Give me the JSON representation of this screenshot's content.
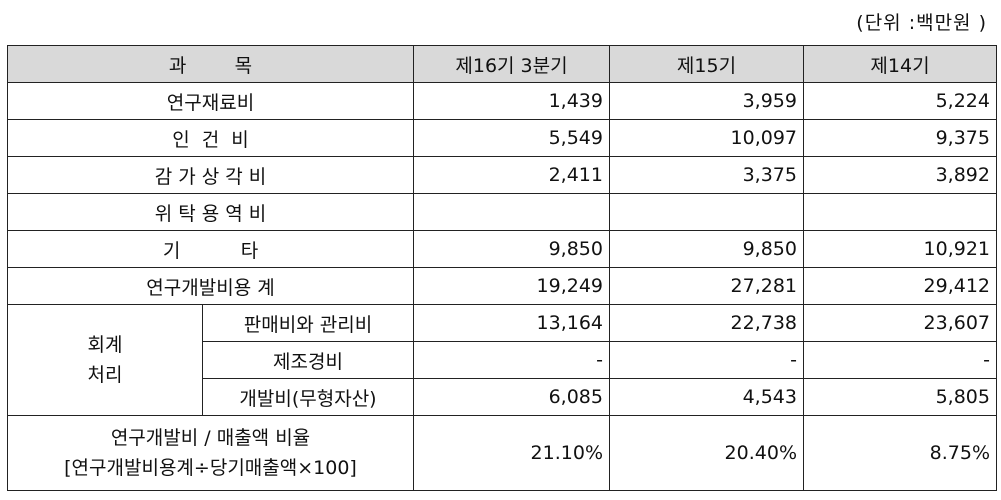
{
  "unit_note": "(단위 :백만원 )",
  "headers": {
    "subject": "과        목",
    "col1": "제16기 3분기",
    "col2": "제15기",
    "col3": "제14기"
  },
  "rows": {
    "materials": {
      "label": "연구재료비",
      "v1": "1,439",
      "v2": "3,959",
      "v3": "5,224"
    },
    "labor": {
      "label": "인  건  비",
      "v1": "5,549",
      "v2": "10,097",
      "v3": "9,375"
    },
    "depreciation": {
      "label": "감 가 상 각 비",
      "v1": "2,411",
      "v2": "3,375",
      "v3": "3,892"
    },
    "outsourcing": {
      "label": "위 탁 용 역 비",
      "v1": "",
      "v2": "",
      "v3": ""
    },
    "other": {
      "label": "기          타",
      "v1": "9,850",
      "v2": "9,850",
      "v3": "10,921"
    },
    "total": {
      "label": "연구개발비용 계",
      "v1": "19,249",
      "v2": "27,281",
      "v3": "29,412"
    }
  },
  "accounting": {
    "group_line1": "회계",
    "group_line2": "처리",
    "sga": {
      "label": "판매비와 관리비",
      "v1": "13,164",
      "v2": "22,738",
      "v3": "23,607"
    },
    "manufacturing": {
      "label": "제조경비",
      "v1": "-",
      "v2": "-",
      "v3": "-"
    },
    "development": {
      "label": "개발비(무형자산)",
      "v1": "6,085",
      "v2": "4,543",
      "v3": "5,805"
    }
  },
  "ratio": {
    "label_line1": "연구개발비 / 매출액 비율",
    "label_line2": "[연구개발비용계÷당기매출액×100]",
    "v1": "21.10%",
    "v2": "20.40%",
    "v3": "8.75%"
  }
}
